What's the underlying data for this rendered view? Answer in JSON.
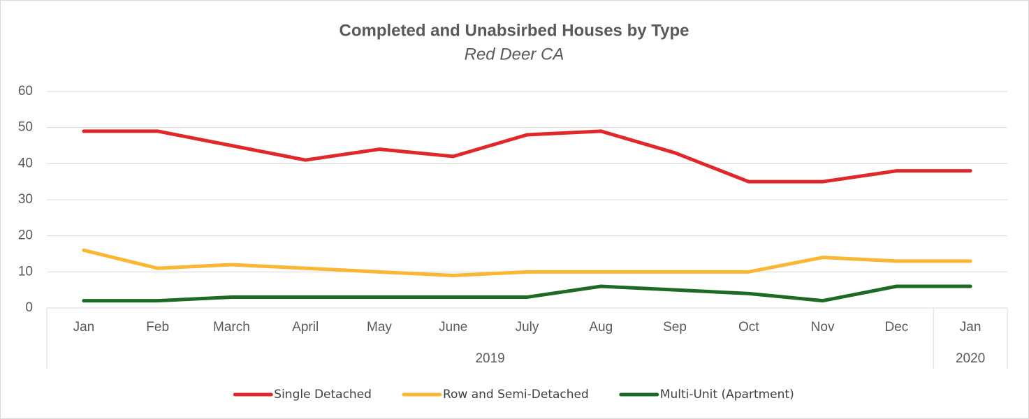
{
  "chart_data": {
    "type": "line",
    "title": "Completed and Unabsirbed Houses by Type",
    "subtitle": "Red Deer CA",
    "categories": [
      "Jan",
      "Feb",
      "March",
      "April",
      "May",
      "June",
      "July",
      "Aug",
      "Sep",
      "Oct",
      "Nov",
      "Dec",
      "Jan"
    ],
    "category_groups": [
      {
        "label": "2019",
        "size": 12
      },
      {
        "label": "2020",
        "size": 1
      }
    ],
    "series": [
      {
        "name": "Single Detached",
        "color": "#e0282b",
        "values": [
          49,
          49,
          45,
          41,
          44,
          42,
          48,
          49,
          43,
          35,
          35,
          38,
          38
        ]
      },
      {
        "name": "Row and Semi-Detached",
        "color": "#fbb634",
        "values": [
          16,
          11,
          12,
          11,
          10,
          9,
          10,
          10,
          10,
          10,
          14,
          13,
          13
        ]
      },
      {
        "name": "Multi-Unit (Apartment)",
        "color": "#1d6a24",
        "values": [
          2,
          2,
          3,
          3,
          3,
          3,
          3,
          6,
          5,
          4,
          2,
          6,
          6
        ]
      }
    ],
    "ylim": [
      0,
      60
    ],
    "yticks": [
      0,
      10,
      20,
      30,
      40,
      50,
      60
    ],
    "grid": true,
    "legend": "bottom"
  }
}
